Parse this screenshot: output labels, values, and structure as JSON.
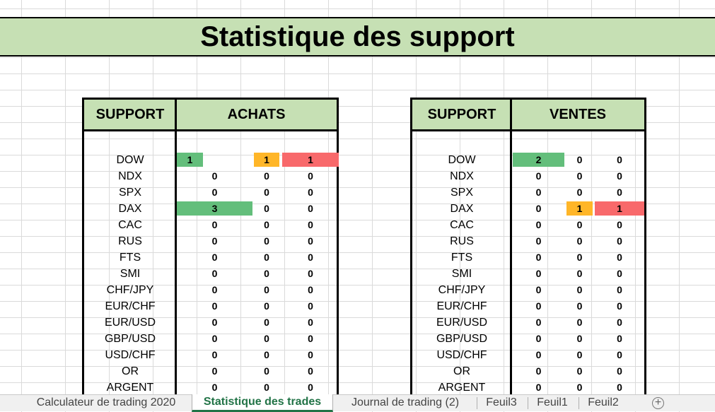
{
  "title": "Statistique des support",
  "panels": [
    {
      "support_header": "SUPPORT",
      "kind_header": "ACHATS",
      "rows": [
        {
          "label": "DOW",
          "v1": "1",
          "v2": "1",
          "v3": "1",
          "c1": "green",
          "c2": "orange",
          "c3": "red",
          "w1": "narrow"
        },
        {
          "label": "NDX",
          "v1": "0",
          "v2": "0",
          "v3": "0"
        },
        {
          "label": "SPX",
          "v1": "0",
          "v2": "0",
          "v3": "0"
        },
        {
          "label": "DAX",
          "v1": "3",
          "v2": "0",
          "v3": "0",
          "c1": "green",
          "w1": "wide"
        },
        {
          "label": "CAC",
          "v1": "0",
          "v2": "0",
          "v3": "0"
        },
        {
          "label": "RUS",
          "v1": "0",
          "v2": "0",
          "v3": "0"
        },
        {
          "label": "FTS",
          "v1": "0",
          "v2": "0",
          "v3": "0"
        },
        {
          "label": "SMI",
          "v1": "0",
          "v2": "0",
          "v3": "0"
        },
        {
          "label": "CHF/JPY",
          "v1": "0",
          "v2": "0",
          "v3": "0"
        },
        {
          "label": "EUR/CHF",
          "v1": "0",
          "v2": "0",
          "v3": "0"
        },
        {
          "label": "EUR/USD",
          "v1": "0",
          "v2": "0",
          "v3": "0"
        },
        {
          "label": "GBP/USD",
          "v1": "0",
          "v2": "0",
          "v3": "0"
        },
        {
          "label": "USD/CHF",
          "v1": "0",
          "v2": "0",
          "v3": "0"
        },
        {
          "label": "OR",
          "v1": "0",
          "v2": "0",
          "v3": "0"
        },
        {
          "label": "ARGENT",
          "v1": "0",
          "v2": "0",
          "v3": "0"
        }
      ]
    },
    {
      "support_header": "SUPPORT",
      "kind_header": "VENTES",
      "rows": [
        {
          "label": "DOW",
          "v1": "2",
          "v2": "0",
          "v3": "0",
          "c1": "green",
          "w1": "full"
        },
        {
          "label": "NDX",
          "v1": "0",
          "v2": "0",
          "v3": "0"
        },
        {
          "label": "SPX",
          "v1": "0",
          "v2": "0",
          "v3": "0"
        },
        {
          "label": "DAX",
          "v1": "0",
          "v2": "1",
          "v3": "1",
          "c2": "orange",
          "c3": "red"
        },
        {
          "label": "CAC",
          "v1": "0",
          "v2": "0",
          "v3": "0"
        },
        {
          "label": "RUS",
          "v1": "0",
          "v2": "0",
          "v3": "0"
        },
        {
          "label": "FTS",
          "v1": "0",
          "v2": "0",
          "v3": "0"
        },
        {
          "label": "SMI",
          "v1": "0",
          "v2": "0",
          "v3": "0"
        },
        {
          "label": "CHF/JPY",
          "v1": "0",
          "v2": "0",
          "v3": "0"
        },
        {
          "label": "EUR/CHF",
          "v1": "0",
          "v2": "0",
          "v3": "0"
        },
        {
          "label": "EUR/USD",
          "v1": "0",
          "v2": "0",
          "v3": "0"
        },
        {
          "label": "GBP/USD",
          "v1": "0",
          "v2": "0",
          "v3": "0"
        },
        {
          "label": "USD/CHF",
          "v1": "0",
          "v2": "0",
          "v3": "0"
        },
        {
          "label": "OR",
          "v1": "0",
          "v2": "0",
          "v3": "0"
        },
        {
          "label": "ARGENT",
          "v1": "0",
          "v2": "0",
          "v3": "0"
        }
      ]
    }
  ],
  "sheet_tabs": [
    {
      "label": "Calculateur de trading 2020",
      "active": false
    },
    {
      "label": "Statistique des trades",
      "active": true
    },
    {
      "label": "Journal de trading  (2)",
      "active": false
    },
    {
      "label": "Feuil3",
      "active": false
    },
    {
      "label": "Feuil1",
      "active": false
    },
    {
      "label": "Feuil2",
      "active": false
    }
  ],
  "add_sheet_icon": "plus-circle-icon",
  "colors": {
    "green": "#63be7b",
    "orange": "#ffb628",
    "red": "#f8696b",
    "header": "#c6e0b4",
    "active_tab": "#217346"
  }
}
